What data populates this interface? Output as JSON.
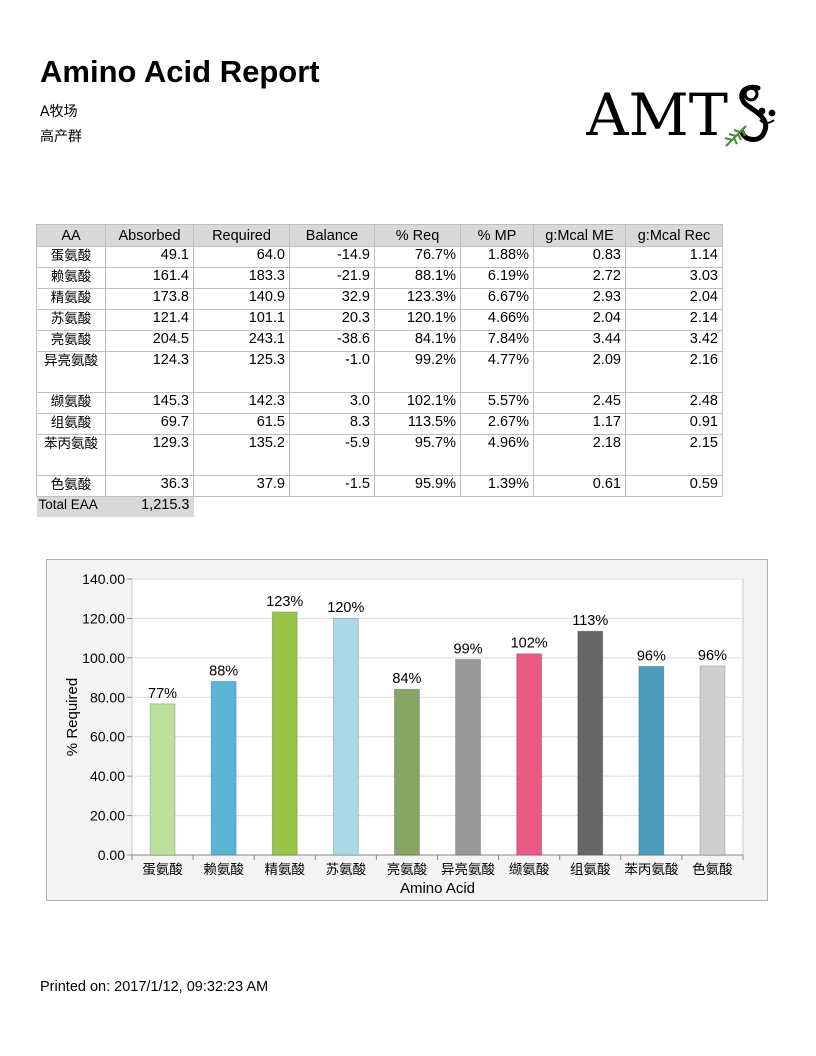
{
  "header": {
    "title": "Amino Acid Report",
    "farm": "A牧场",
    "group": "高产群",
    "logo_text": "AMTS"
  },
  "table": {
    "columns": [
      "AA",
      "Absorbed",
      "Required",
      "Balance",
      "% Req",
      "% MP",
      "g:Mcal ME",
      "g:Mcal Rec"
    ],
    "rows": [
      {
        "name": "蛋氨酸",
        "cells": [
          "49.1",
          "64.0",
          "-14.9",
          "76.7%",
          "1.88%",
          "0.83",
          "1.14"
        ]
      },
      {
        "name": "赖氨酸",
        "cells": [
          "161.4",
          "183.3",
          "-21.9",
          "88.1%",
          "6.19%",
          "2.72",
          "3.03"
        ]
      },
      {
        "name": "精氨酸",
        "cells": [
          "173.8",
          "140.9",
          "32.9",
          "123.3%",
          "6.67%",
          "2.93",
          "2.04"
        ]
      },
      {
        "name": "苏氨酸",
        "cells": [
          "121.4",
          "101.1",
          "20.3",
          "120.1%",
          "4.66%",
          "2.04",
          "2.14"
        ]
      },
      {
        "name": "亮氨酸",
        "cells": [
          "204.5",
          "243.1",
          "-38.6",
          "84.1%",
          "7.84%",
          "3.44",
          "3.42"
        ]
      },
      {
        "name": "异亮氨酸",
        "cells": [
          "124.3",
          "125.3",
          "-1.0",
          "99.2%",
          "4.77%",
          "2.09",
          "2.16"
        ]
      },
      {
        "name": "缬氨酸",
        "cells": [
          "145.3",
          "142.3",
          "3.0",
          "102.1%",
          "5.57%",
          "2.45",
          "2.48"
        ]
      },
      {
        "name": "组氨酸",
        "cells": [
          "69.7",
          "61.5",
          "8.3",
          "113.5%",
          "2.67%",
          "1.17",
          "0.91"
        ]
      },
      {
        "name": "苯丙氨酸",
        "cells": [
          "129.3",
          "135.2",
          "-5.9",
          "95.7%",
          "4.96%",
          "2.18",
          "2.15"
        ]
      },
      {
        "name": "色氨酸",
        "cells": [
          "36.3",
          "37.9",
          "-1.5",
          "95.9%",
          "1.39%",
          "0.61",
          "0.59"
        ]
      }
    ],
    "total_label": "Total EAA",
    "total_value": "1,215.3"
  },
  "chart_data": {
    "type": "bar",
    "categories": [
      "蛋氨酸",
      "赖氨酸",
      "精氨酸",
      "苏氨酸",
      "亮氨酸",
      "异亮氨酸",
      "缬氨酸",
      "组氨酸",
      "苯丙氨酸",
      "色氨酸"
    ],
    "values": [
      76.7,
      88.1,
      123.3,
      120.1,
      84.1,
      99.2,
      102.1,
      113.5,
      95.7,
      95.9
    ],
    "data_labels": [
      "77%",
      "88%",
      "123%",
      "120%",
      "84%",
      "99%",
      "102%",
      "113%",
      "96%",
      "96%"
    ],
    "bar_colors": [
      "#bde09d",
      "#5ab4d6",
      "#98c747",
      "#acd7e6",
      "#86a564",
      "#999999",
      "#e95b83",
      "#666666",
      "#4d9cbc",
      "#cfcfcf"
    ],
    "title": "",
    "xlabel": "Amino Acid",
    "ylabel": "% Required",
    "ylim": [
      0,
      140
    ],
    "yticks": [
      "0.00",
      "20.00",
      "40.00",
      "60.00",
      "80.00",
      "100.00",
      "120.00",
      "140.00"
    ],
    "grid": true,
    "legend": "none"
  },
  "footer": {
    "printed": "Printed on: 2017/1/12, 09:32:23 AM"
  }
}
